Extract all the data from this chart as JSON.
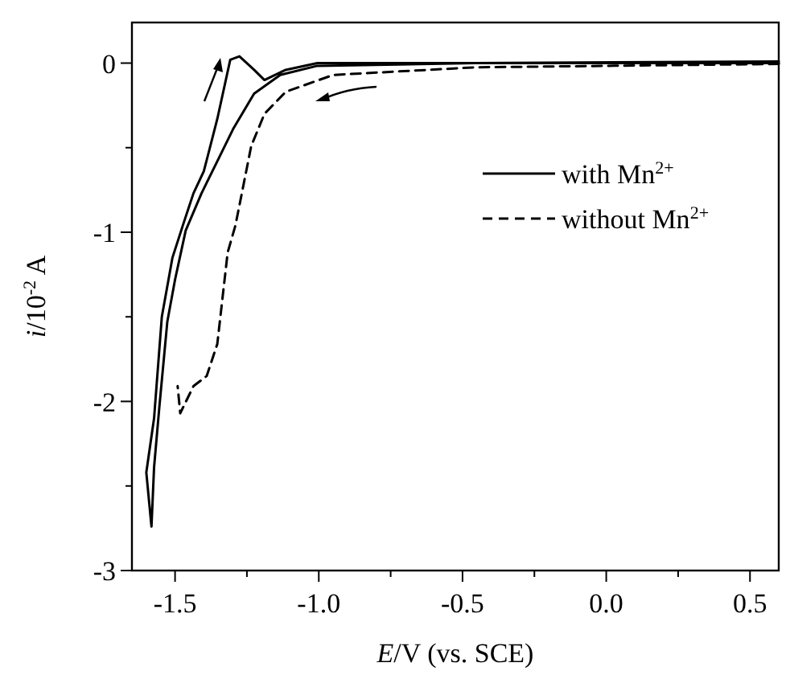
{
  "chart_data": {
    "type": "line",
    "xlabel": "E/V (vs. SCE)",
    "ylabel": "i/10$^{-2}$ A",
    "xlim": [
      -1.65,
      0.6
    ],
    "ylim": [
      -3,
      0.24
    ],
    "xticks": [
      {
        "value": -1.5,
        "label": "-1.5"
      },
      {
        "value": -1.25,
        "label": null
      },
      {
        "value": -1.0,
        "label": "-1.0"
      },
      {
        "value": -0.75,
        "label": null
      },
      {
        "value": -0.5,
        "label": "-0.5"
      },
      {
        "value": -0.25,
        "label": null
      },
      {
        "value": 0,
        "label": "0.0"
      },
      {
        "value": 0.25,
        "label": null
      },
      {
        "value": 0.5,
        "label": "0.5"
      }
    ],
    "yticks": [
      -3,
      {
        "value": -2.5,
        "label": null
      },
      -2,
      {
        "value": -1.5,
        "label": null
      },
      -1,
      {
        "value": -0.5,
        "label": null
      },
      0
    ],
    "grid": false,
    "legend": "top right",
    "marker": "none",
    "series": [
      {
        "name": "with Mn$^{2+}$",
        "color": "#000000",
        "line_style": "solid",
        "x": [
          0.6,
          -0.456,
          -1.005,
          -1.134,
          -1.225,
          -1.298,
          -1.353,
          -1.408,
          -1.463,
          -1.5,
          -1.527,
          -1.555,
          -1.573,
          -1.582,
          -1.6,
          -1.573,
          -1.546,
          -1.509,
          -1.473,
          -1.436,
          -1.4,
          -1.353,
          -1.308,
          -1.276,
          -1.225,
          -1.189,
          -1.115,
          -1.005,
          -0.456,
          0.6
        ],
        "values": [
          0.0,
          0.0,
          -0.016,
          -0.07,
          -0.18,
          -0.39,
          -0.58,
          -0.77,
          -0.99,
          -1.28,
          -1.53,
          -2.04,
          -2.39,
          -2.74,
          -2.42,
          -2.1,
          -1.5,
          -1.15,
          -0.96,
          -0.77,
          -0.64,
          -0.33,
          0.02,
          0.04,
          -0.04,
          -0.1,
          -0.04,
          0.0,
          0.0,
          0.01
        ]
      },
      {
        "name": "without Mn$^{2+}$",
        "color": "#000000",
        "line_style": "dashed",
        "x": [
          0.6,
          -0.456,
          -0.95,
          -1.115,
          -1.189,
          -1.235,
          -1.29,
          -1.317,
          -1.353,
          -1.39,
          -1.436,
          -1.482,
          -1.491
        ],
        "values": [
          -0.005,
          -0.025,
          -0.07,
          -0.17,
          -0.3,
          -0.49,
          -0.96,
          -1.12,
          -1.66,
          -1.85,
          -1.91,
          -2.07,
          -1.91
        ]
      }
    ]
  }
}
